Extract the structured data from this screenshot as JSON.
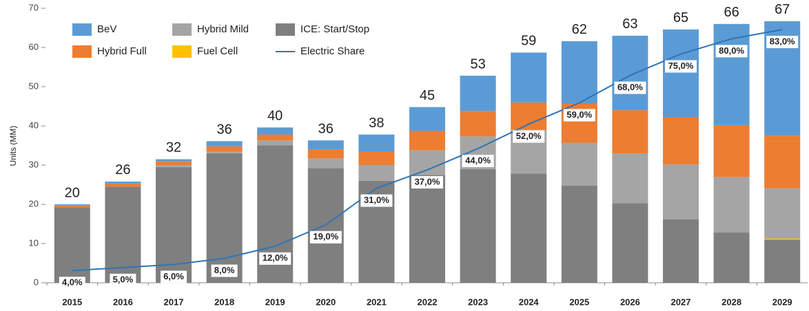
{
  "chart_data": {
    "type": "bar",
    "y_label": "Units (MM)",
    "categories": [
      "2015",
      "2016",
      "2017",
      "2018",
      "2019",
      "2020",
      "2021",
      "2022",
      "2023",
      "2024",
      "2025",
      "2026",
      "2027",
      "2028",
      "2029"
    ],
    "ylim": [
      0,
      70
    ],
    "yticks": [
      0,
      10,
      20,
      30,
      40,
      50,
      60,
      70
    ],
    "y2lim": [
      0,
      90
    ],
    "legend": "top-left",
    "series": [
      {
        "name": "ICE: Start/Stop",
        "color": "#7f7f7f",
        "values": [
          19.2,
          24.5,
          29.5,
          33.0,
          35.0,
          29.2,
          26.0,
          27.5,
          29.0,
          27.8,
          24.8,
          20.3,
          16.2,
          12.8,
          11.0
        ]
      },
      {
        "name": "Fuel Cell",
        "color": "#ffc000",
        "values": [
          0,
          0,
          0,
          0,
          0,
          0,
          0,
          0,
          0,
          0,
          0,
          0,
          0,
          0,
          0.3
        ]
      },
      {
        "name": "Hybrid Mild",
        "color": "#a5a5a5",
        "values": [
          0,
          0,
          0.5,
          0.5,
          1.3,
          2.5,
          4.0,
          6.3,
          8.3,
          11.2,
          10.9,
          12.7,
          14.0,
          14.2,
          12.8
        ]
      },
      {
        "name": "Hybrid Full",
        "color": "#ed7d31",
        "values": [
          0.6,
          0.8,
          1.0,
          1.3,
          1.5,
          2.3,
          3.5,
          4.9,
          6.5,
          7.0,
          10.0,
          11.0,
          12.0,
          13.2,
          13.4
        ]
      },
      {
        "name": "BeV",
        "color": "#5b9bd5",
        "values": [
          0.2,
          0.5,
          0.5,
          1.3,
          1.8,
          2.3,
          4.3,
          6.1,
          9.0,
          12.7,
          15.9,
          19.0,
          22.4,
          25.8,
          29.2
        ]
      },
      {
        "name": "Electric Share",
        "type": "line",
        "axis": "y2",
        "color": "#2e75b6",
        "values": [
          4,
          5,
          6,
          8,
          12,
          19,
          31,
          37,
          44,
          52,
          59,
          68,
          75,
          80,
          83
        ],
        "value_labels": [
          "4,0%",
          "5,0%",
          "6,0%",
          "8,0%",
          "12,0%",
          "19,0%",
          "31,0%",
          "37,0%",
          "44,0%",
          "52,0%",
          "59,0%",
          "68,0%",
          "75,0%",
          "80,0%",
          "83,0%"
        ]
      }
    ],
    "totals": [
      20,
      26,
      32,
      36,
      40,
      36,
      38,
      45,
      53,
      59,
      62,
      63,
      65,
      66,
      67
    ]
  }
}
